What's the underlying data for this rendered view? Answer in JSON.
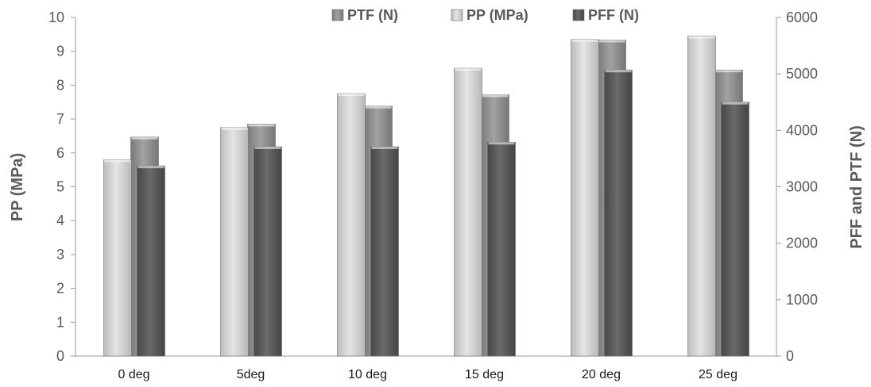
{
  "chart_data": {
    "type": "bar",
    "categories": [
      "0 deg",
      "5deg",
      "10 deg",
      "15 deg",
      "20 deg",
      "25 deg"
    ],
    "series": [
      {
        "name": "PP (MPa)",
        "axis": "left",
        "color": "#cfcfcf",
        "values": [
          5.8,
          6.75,
          7.75,
          8.5,
          9.35,
          9.45
        ]
      },
      {
        "name": "PTF (N)",
        "axis": "right",
        "color": "#8c8c8c",
        "values": [
          3880,
          4110,
          4430,
          4630,
          5600,
          5070
        ]
      },
      {
        "name": "PFF (N)",
        "axis": "right",
        "color": "#5a5a5a",
        "values": [
          3370,
          3710,
          3710,
          3790,
          5070,
          4500
        ]
      }
    ],
    "legend_order": [
      "PTF (N)",
      "PP (MPa)",
      "PFF (N)"
    ],
    "legend_position": "top",
    "ylabel": "PP (MPa)",
    "y2label": "PFF and PTF (N)",
    "ylim": [
      0,
      10
    ],
    "y2lim": [
      0,
      6000
    ],
    "yticks": [
      "0",
      "1",
      "2",
      "3",
      "4",
      "5",
      "6",
      "7",
      "8",
      "9",
      "10"
    ],
    "y2ticks": [
      "0",
      "1000",
      "2000",
      "3000",
      "4000",
      "5000",
      "6000"
    ],
    "grid": false
  }
}
